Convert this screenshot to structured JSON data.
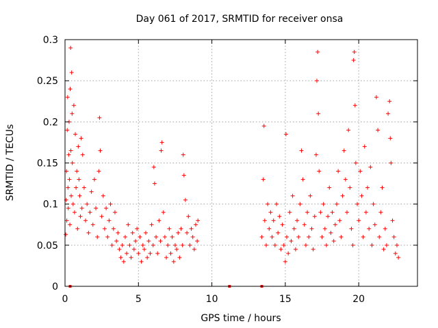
{
  "chart_data": {
    "type": "scatter",
    "title": "Day 061 of 2017, SRMTID for receiver onsa",
    "xlabel": "GPS time / hours",
    "ylabel": "SRMTID / TECUs",
    "xlim": [
      0,
      24
    ],
    "ylim": [
      0,
      0.3
    ],
    "x_ticks": [
      0,
      5,
      10,
      15,
      20
    ],
    "y_ticks": [
      0,
      0.05,
      0.1,
      0.15,
      0.2,
      0.25,
      0.3
    ],
    "x_tick_labels": [
      "0",
      "5",
      "10",
      "15",
      "20"
    ],
    "y_tick_labels": [
      "0",
      "0.05",
      "0.1",
      "0.15",
      "0.2",
      "0.25",
      "0.3"
    ],
    "grid": true,
    "marker": "+",
    "series": [
      {
        "name": "SRMTID",
        "color": "#ff0000",
        "points": [
          [
            0.05,
            0.063
          ],
          [
            0.08,
            0.105
          ],
          [
            0.1,
            0.14
          ],
          [
            0.12,
            0.08
          ],
          [
            0.15,
            0.19
          ],
          [
            0.18,
            0.23
          ],
          [
            0.2,
            0.12
          ],
          [
            0.22,
            0.095
          ],
          [
            0.25,
            0.16
          ],
          [
            0.28,
            0.2
          ],
          [
            0.3,
            0.13
          ],
          [
            0.33,
            0.075
          ],
          [
            0.35,
            0.24
          ],
          [
            0.38,
            0.29
          ],
          [
            0.4,
            0.165
          ],
          [
            0.42,
            0.11
          ],
          [
            0.45,
            0.26
          ],
          [
            0.48,
            0.21
          ],
          [
            0.5,
            0.15
          ],
          [
            0.55,
            0.1
          ],
          [
            0.6,
            0.22
          ],
          [
            0.65,
            0.09
          ],
          [
            0.7,
            0.185
          ],
          [
            0.75,
            0.12
          ],
          [
            0.8,
            0.14
          ],
          [
            0.85,
            0.07
          ],
          [
            0.9,
            0.17
          ],
          [
            0.95,
            0.13
          ],
          [
            1.0,
            0.11
          ],
          [
            1.05,
            0.085
          ],
          [
            1.1,
            0.18
          ],
          [
            1.15,
            0.095
          ],
          [
            1.2,
            0.16
          ],
          [
            1.3,
            0.12
          ],
          [
            1.4,
            0.08
          ],
          [
            1.5,
            0.1
          ],
          [
            1.6,
            0.065
          ],
          [
            1.7,
            0.09
          ],
          [
            1.8,
            0.115
          ],
          [
            1.9,
            0.075
          ],
          [
            2.0,
            0.13
          ],
          [
            2.1,
            0.095
          ],
          [
            2.2,
            0.06
          ],
          [
            2.3,
            0.14
          ],
          [
            2.35,
            0.205
          ],
          [
            2.4,
            0.165
          ],
          [
            2.5,
            0.085
          ],
          [
            2.6,
            0.11
          ],
          [
            2.7,
            0.07
          ],
          [
            2.8,
            0.095
          ],
          [
            2.9,
            0.06
          ],
          [
            3.0,
            0.08
          ],
          [
            3.1,
            0.1
          ],
          [
            3.2,
            0.05
          ],
          [
            3.3,
            0.07
          ],
          [
            3.4,
            0.09
          ],
          [
            3.5,
            0.055
          ],
          [
            3.6,
            0.065
          ],
          [
            3.7,
            0.045
          ],
          [
            3.8,
            0.035
          ],
          [
            3.9,
            0.05
          ],
          [
            4.0,
            0.03
          ],
          [
            4.1,
            0.06
          ],
          [
            4.2,
            0.04
          ],
          [
            4.3,
            0.075
          ],
          [
            4.4,
            0.05
          ],
          [
            4.5,
            0.035
          ],
          [
            4.6,
            0.065
          ],
          [
            4.7,
            0.045
          ],
          [
            4.8,
            0.055
          ],
          [
            4.9,
            0.07
          ],
          [
            5.0,
            0.04
          ],
          [
            5.1,
            0.06
          ],
          [
            5.2,
            0.03
          ],
          [
            5.3,
            0.05
          ],
          [
            5.4,
            0.045
          ],
          [
            5.5,
            0.065
          ],
          [
            5.6,
            0.035
          ],
          [
            5.7,
            0.055
          ],
          [
            5.8,
            0.04
          ],
          [
            5.9,
            0.075
          ],
          [
            6.0,
            0.05
          ],
          [
            6.05,
            0.145
          ],
          [
            6.1,
            0.125
          ],
          [
            6.2,
            0.06
          ],
          [
            6.3,
            0.04
          ],
          [
            6.4,
            0.08
          ],
          [
            6.5,
            0.055
          ],
          [
            6.55,
            0.165
          ],
          [
            6.6,
            0.175
          ],
          [
            6.7,
            0.09
          ],
          [
            6.8,
            0.06
          ],
          [
            6.9,
            0.035
          ],
          [
            7.0,
            0.05
          ],
          [
            7.1,
            0.07
          ],
          [
            7.2,
            0.04
          ],
          [
            7.3,
            0.06
          ],
          [
            7.4,
            0.03
          ],
          [
            7.5,
            0.05
          ],
          [
            7.6,
            0.045
          ],
          [
            7.7,
            0.065
          ],
          [
            7.8,
            0.035
          ],
          [
            7.9,
            0.07
          ],
          [
            8.0,
            0.05
          ],
          [
            8.05,
            0.16
          ],
          [
            8.1,
            0.135
          ],
          [
            8.2,
            0.105
          ],
          [
            8.3,
            0.065
          ],
          [
            8.4,
            0.085
          ],
          [
            8.5,
            0.05
          ],
          [
            8.6,
            0.07
          ],
          [
            8.7,
            0.06
          ],
          [
            8.8,
            0.045
          ],
          [
            8.9,
            0.075
          ],
          [
            9.0,
            0.055
          ],
          [
            9.05,
            0.08
          ],
          [
            13.4,
            0.06
          ],
          [
            13.5,
            0.13
          ],
          [
            13.55,
            0.195
          ],
          [
            13.6,
            0.08
          ],
          [
            13.7,
            0.05
          ],
          [
            13.8,
            0.1
          ],
          [
            13.9,
            0.07
          ],
          [
            14.0,
            0.09
          ],
          [
            14.1,
            0.06
          ],
          [
            14.2,
            0.08
          ],
          [
            14.3,
            0.05
          ],
          [
            14.4,
            0.1
          ],
          [
            14.5,
            0.065
          ],
          [
            14.6,
            0.085
          ],
          [
            14.7,
            0.045
          ],
          [
            14.8,
            0.075
          ],
          [
            14.9,
            0.05
          ],
          [
            15.0,
            0.03
          ],
          [
            15.05,
            0.185
          ],
          [
            15.1,
            0.06
          ],
          [
            15.2,
            0.04
          ],
          [
            15.3,
            0.09
          ],
          [
            15.4,
            0.055
          ],
          [
            15.5,
            0.11
          ],
          [
            15.6,
            0.07
          ],
          [
            15.7,
            0.045
          ],
          [
            15.8,
            0.08
          ],
          [
            15.9,
            0.06
          ],
          [
            16.0,
            0.1
          ],
          [
            16.1,
            0.165
          ],
          [
            16.2,
            0.13
          ],
          [
            16.3,
            0.075
          ],
          [
            16.4,
            0.05
          ],
          [
            16.5,
            0.09
          ],
          [
            16.6,
            0.06
          ],
          [
            16.7,
            0.11
          ],
          [
            16.8,
            0.07
          ],
          [
            16.9,
            0.045
          ],
          [
            17.0,
            0.085
          ],
          [
            17.1,
            0.16
          ],
          [
            17.15,
            0.25
          ],
          [
            17.2,
            0.285
          ],
          [
            17.25,
            0.21
          ],
          [
            17.3,
            0.14
          ],
          [
            17.4,
            0.09
          ],
          [
            17.5,
            0.06
          ],
          [
            17.6,
            0.1
          ],
          [
            17.7,
            0.07
          ],
          [
            17.8,
            0.05
          ],
          [
            17.9,
            0.085
          ],
          [
            18.0,
            0.12
          ],
          [
            18.1,
            0.065
          ],
          [
            18.2,
            0.09
          ],
          [
            18.3,
            0.055
          ],
          [
            18.4,
            0.075
          ],
          [
            18.5,
            0.1
          ],
          [
            18.6,
            0.14
          ],
          [
            18.7,
            0.08
          ],
          [
            18.8,
            0.06
          ],
          [
            18.9,
            0.11
          ],
          [
            19.0,
            0.165
          ],
          [
            19.1,
            0.13
          ],
          [
            19.2,
            0.09
          ],
          [
            19.3,
            0.19
          ],
          [
            19.4,
            0.12
          ],
          [
            19.5,
            0.07
          ],
          [
            19.6,
            0.05
          ],
          [
            19.65,
            0.275
          ],
          [
            19.7,
            0.285
          ],
          [
            19.75,
            0.22
          ],
          [
            19.8,
            0.15
          ],
          [
            19.9,
            0.1
          ],
          [
            20.0,
            0.08
          ],
          [
            20.1,
            0.14
          ],
          [
            20.2,
            0.11
          ],
          [
            20.3,
            0.06
          ],
          [
            20.4,
            0.17
          ],
          [
            20.5,
            0.09
          ],
          [
            20.6,
            0.12
          ],
          [
            20.7,
            0.07
          ],
          [
            20.8,
            0.145
          ],
          [
            20.9,
            0.05
          ],
          [
            21.0,
            0.1
          ],
          [
            21.1,
            0.075
          ],
          [
            21.2,
            0.23
          ],
          [
            21.3,
            0.19
          ],
          [
            21.4,
            0.06
          ],
          [
            21.5,
            0.09
          ],
          [
            21.6,
            0.12
          ],
          [
            21.7,
            0.045
          ],
          [
            21.8,
            0.07
          ],
          [
            21.9,
            0.05
          ],
          [
            22.0,
            0.21
          ],
          [
            22.1,
            0.225
          ],
          [
            22.15,
            0.18
          ],
          [
            22.2,
            0.15
          ],
          [
            22.3,
            0.08
          ],
          [
            22.4,
            0.06
          ],
          [
            22.5,
            0.04
          ],
          [
            22.6,
            0.05
          ],
          [
            22.7,
            0.035
          ]
        ]
      }
    ],
    "gap_markers_x": [
      0.35,
      11.2,
      13.4
    ]
  }
}
